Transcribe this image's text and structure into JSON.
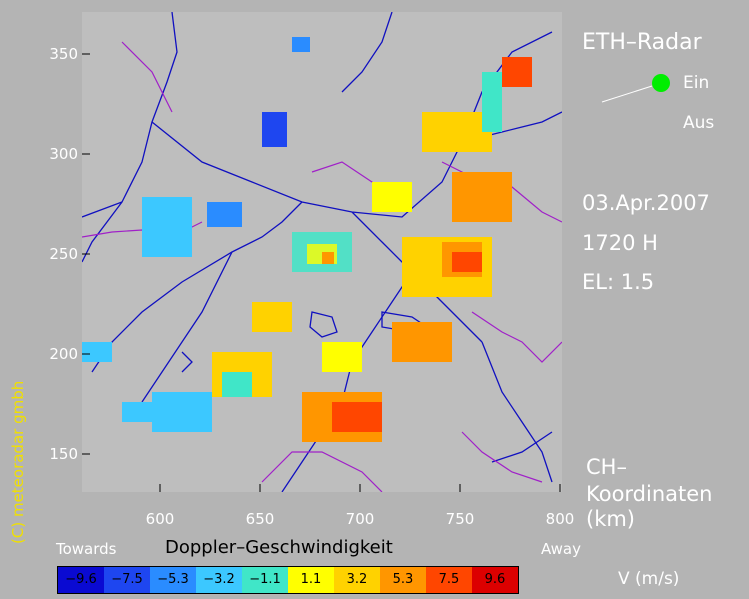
{
  "title": "ETH–Radar",
  "switch": {
    "on_label": "Ein",
    "off_label": "Aus",
    "state_color": "#00ee00"
  },
  "date": "03.Apr.2007",
  "time": "1720  H",
  "elevation": "EL:  1.5",
  "coord_label": {
    "line1": "CH–",
    "line2": "Koordinaten",
    "line3": "(km)"
  },
  "axes": {
    "y_ticks": [
      "350",
      "300",
      "250",
      "200",
      "150"
    ],
    "x_ticks": [
      "600",
      "650",
      "700",
      "750",
      "800"
    ]
  },
  "copyright": "(C)  meteoradar gmbh",
  "legend": {
    "title": "Doppler–Geschwindigkeit",
    "towards": "Towards",
    "away": "Away",
    "unit": "V   (m/s)",
    "entries": [
      {
        "label": "−9.6",
        "color": "#0a0ad2"
      },
      {
        "label": "−7.5",
        "color": "#1e46f0"
      },
      {
        "label": "−5.3",
        "color": "#2a8cff"
      },
      {
        "label": "−3.2",
        "color": "#3cc8ff"
      },
      {
        "label": "−1.1",
        "color": "#40e6c8"
      },
      {
        "label": "1.1",
        "color": "#ffff00"
      },
      {
        "label": "3.2",
        "color": "#ffd200"
      },
      {
        "label": "5.3",
        "color": "#ff9600"
      },
      {
        "label": "7.5",
        "color": "#ff4600"
      },
      {
        "label": "9.6",
        "color": "#dc0000"
      }
    ]
  }
}
